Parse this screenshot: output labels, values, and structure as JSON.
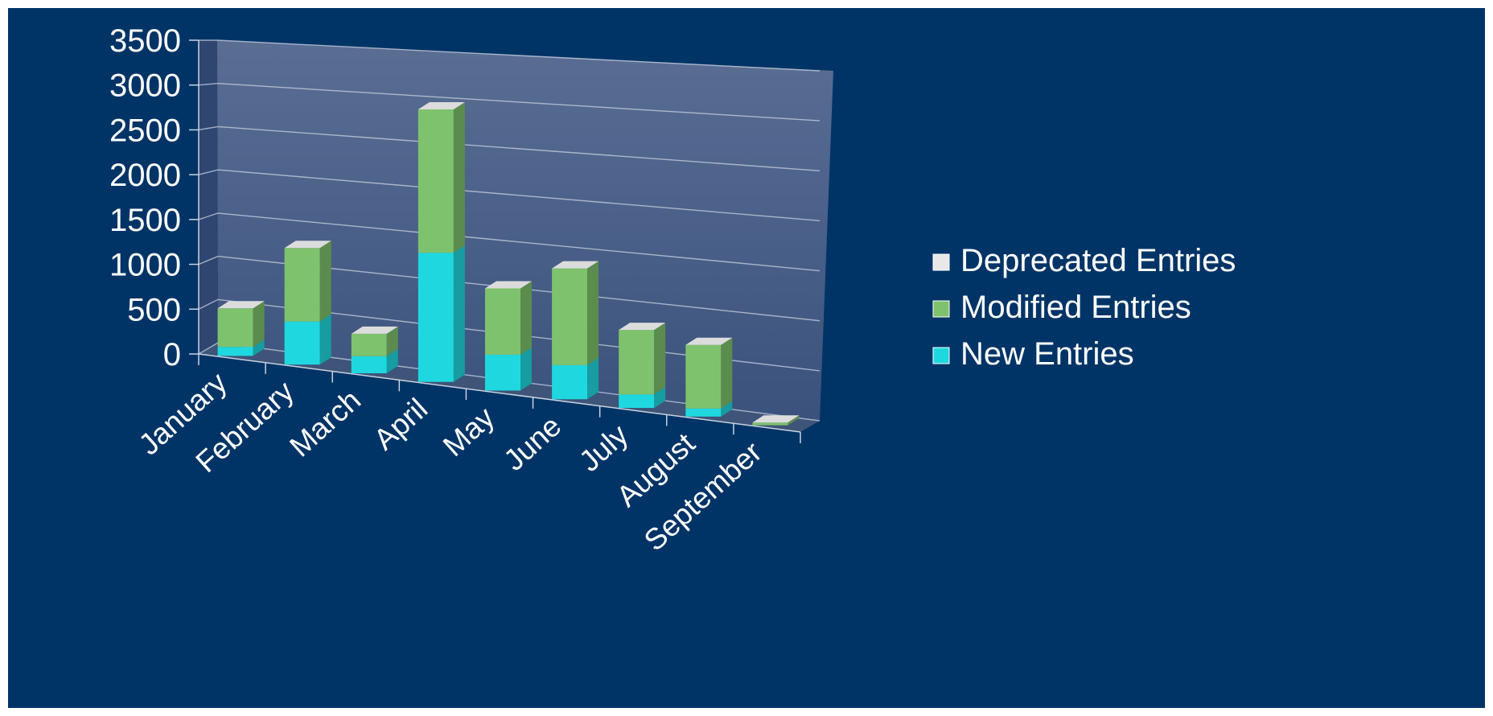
{
  "chart_data": {
    "type": "bar",
    "stacked": true,
    "three_d": true,
    "categories": [
      "January",
      "February",
      "March",
      "April",
      "May",
      "June",
      "July",
      "August",
      "September"
    ],
    "series": [
      {
        "name": "New Entries",
        "color": "#1fd8df",
        "values": [
          100,
          480,
          190,
          1440,
          400,
          380,
          150,
          90,
          0
        ]
      },
      {
        "name": "Modified Entries",
        "color": "#7fc26d",
        "values": [
          430,
          820,
          250,
          1600,
          740,
          1080,
          720,
          710,
          30
        ]
      },
      {
        "name": "Deprecated Entries",
        "color": "#e8e8e8",
        "values": [
          0,
          0,
          0,
          0,
          0,
          0,
          0,
          0,
          0
        ]
      }
    ],
    "y_ticks": [
      "0",
      "500",
      "1000",
      "1500",
      "2000",
      "2500",
      "3000",
      "3500"
    ],
    "ylim": [
      0,
      3500
    ],
    "grid": true,
    "legend_position": "right",
    "legend_entries": [
      "Deprecated Entries",
      "Modified Entries",
      "New Entries"
    ],
    "background_color": "#003466",
    "wall_color": "#455d86",
    "floor_color": "#3e5478"
  }
}
